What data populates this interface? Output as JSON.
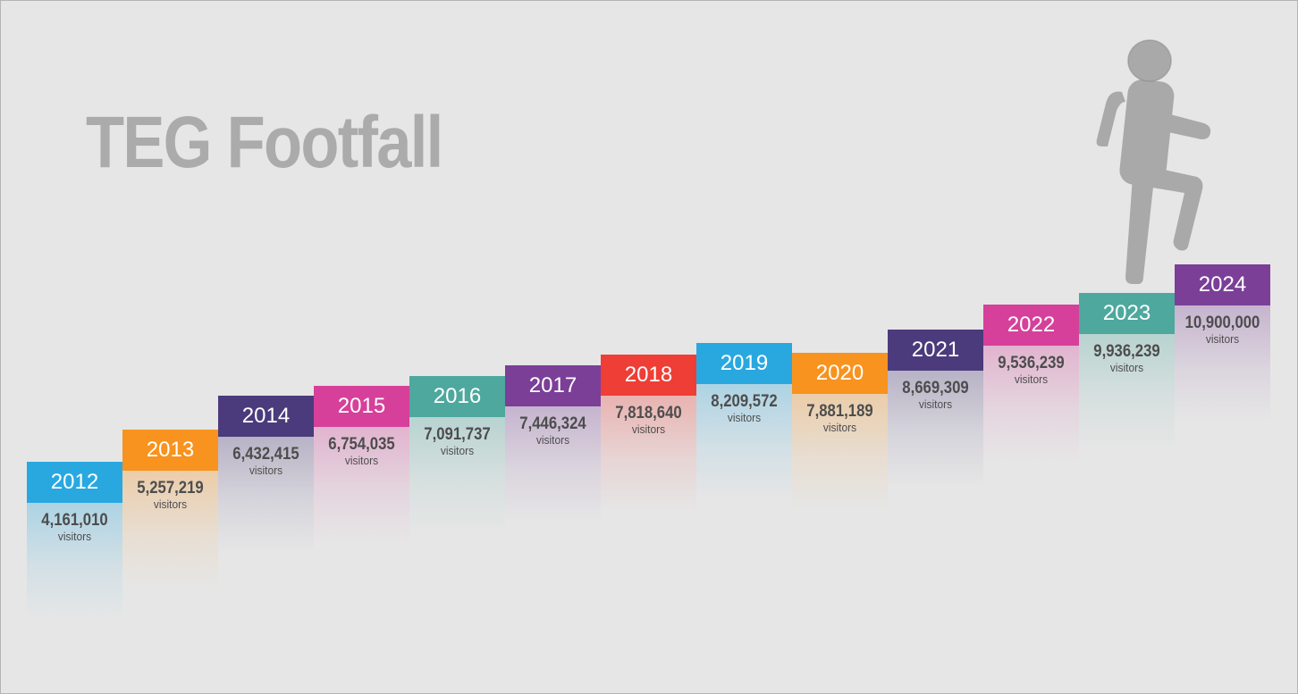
{
  "title": "TEG Footfall",
  "chart_data": {
    "type": "bar",
    "title": "TEG Footfall",
    "categories": [
      "2012",
      "2013",
      "2014",
      "2015",
      "2016",
      "2017",
      "2018",
      "2019",
      "2020",
      "2021",
      "2022",
      "2023",
      "2024"
    ],
    "values": [
      4161010,
      5257219,
      6432415,
      6754035,
      7091737,
      7446324,
      7818640,
      8209572,
      7881189,
      8669309,
      9536239,
      9936239,
      10900000
    ],
    "value_labels": [
      "4,161,010",
      "5,257,219",
      "6,432,415",
      "6,754,035",
      "7,091,737",
      "7,446,324",
      "7,818,640",
      "8,209,572",
      "7,881,189",
      "8,669,309",
      "9,536,239",
      "9,936,239",
      "10,900,000"
    ],
    "unit_label": "visitors",
    "colors": [
      "#29a8e0",
      "#f7931e",
      "#4b3b7c",
      "#d6409a",
      "#4ea89e",
      "#7b3f98",
      "#ee3e36",
      "#29a8e0",
      "#f7931e",
      "#4b3b7c",
      "#d6409a",
      "#4ea89e",
      "#7b3f98"
    ],
    "grid": false,
    "legend": "none"
  },
  "icons": {
    "walker": "walking-person-icon"
  }
}
